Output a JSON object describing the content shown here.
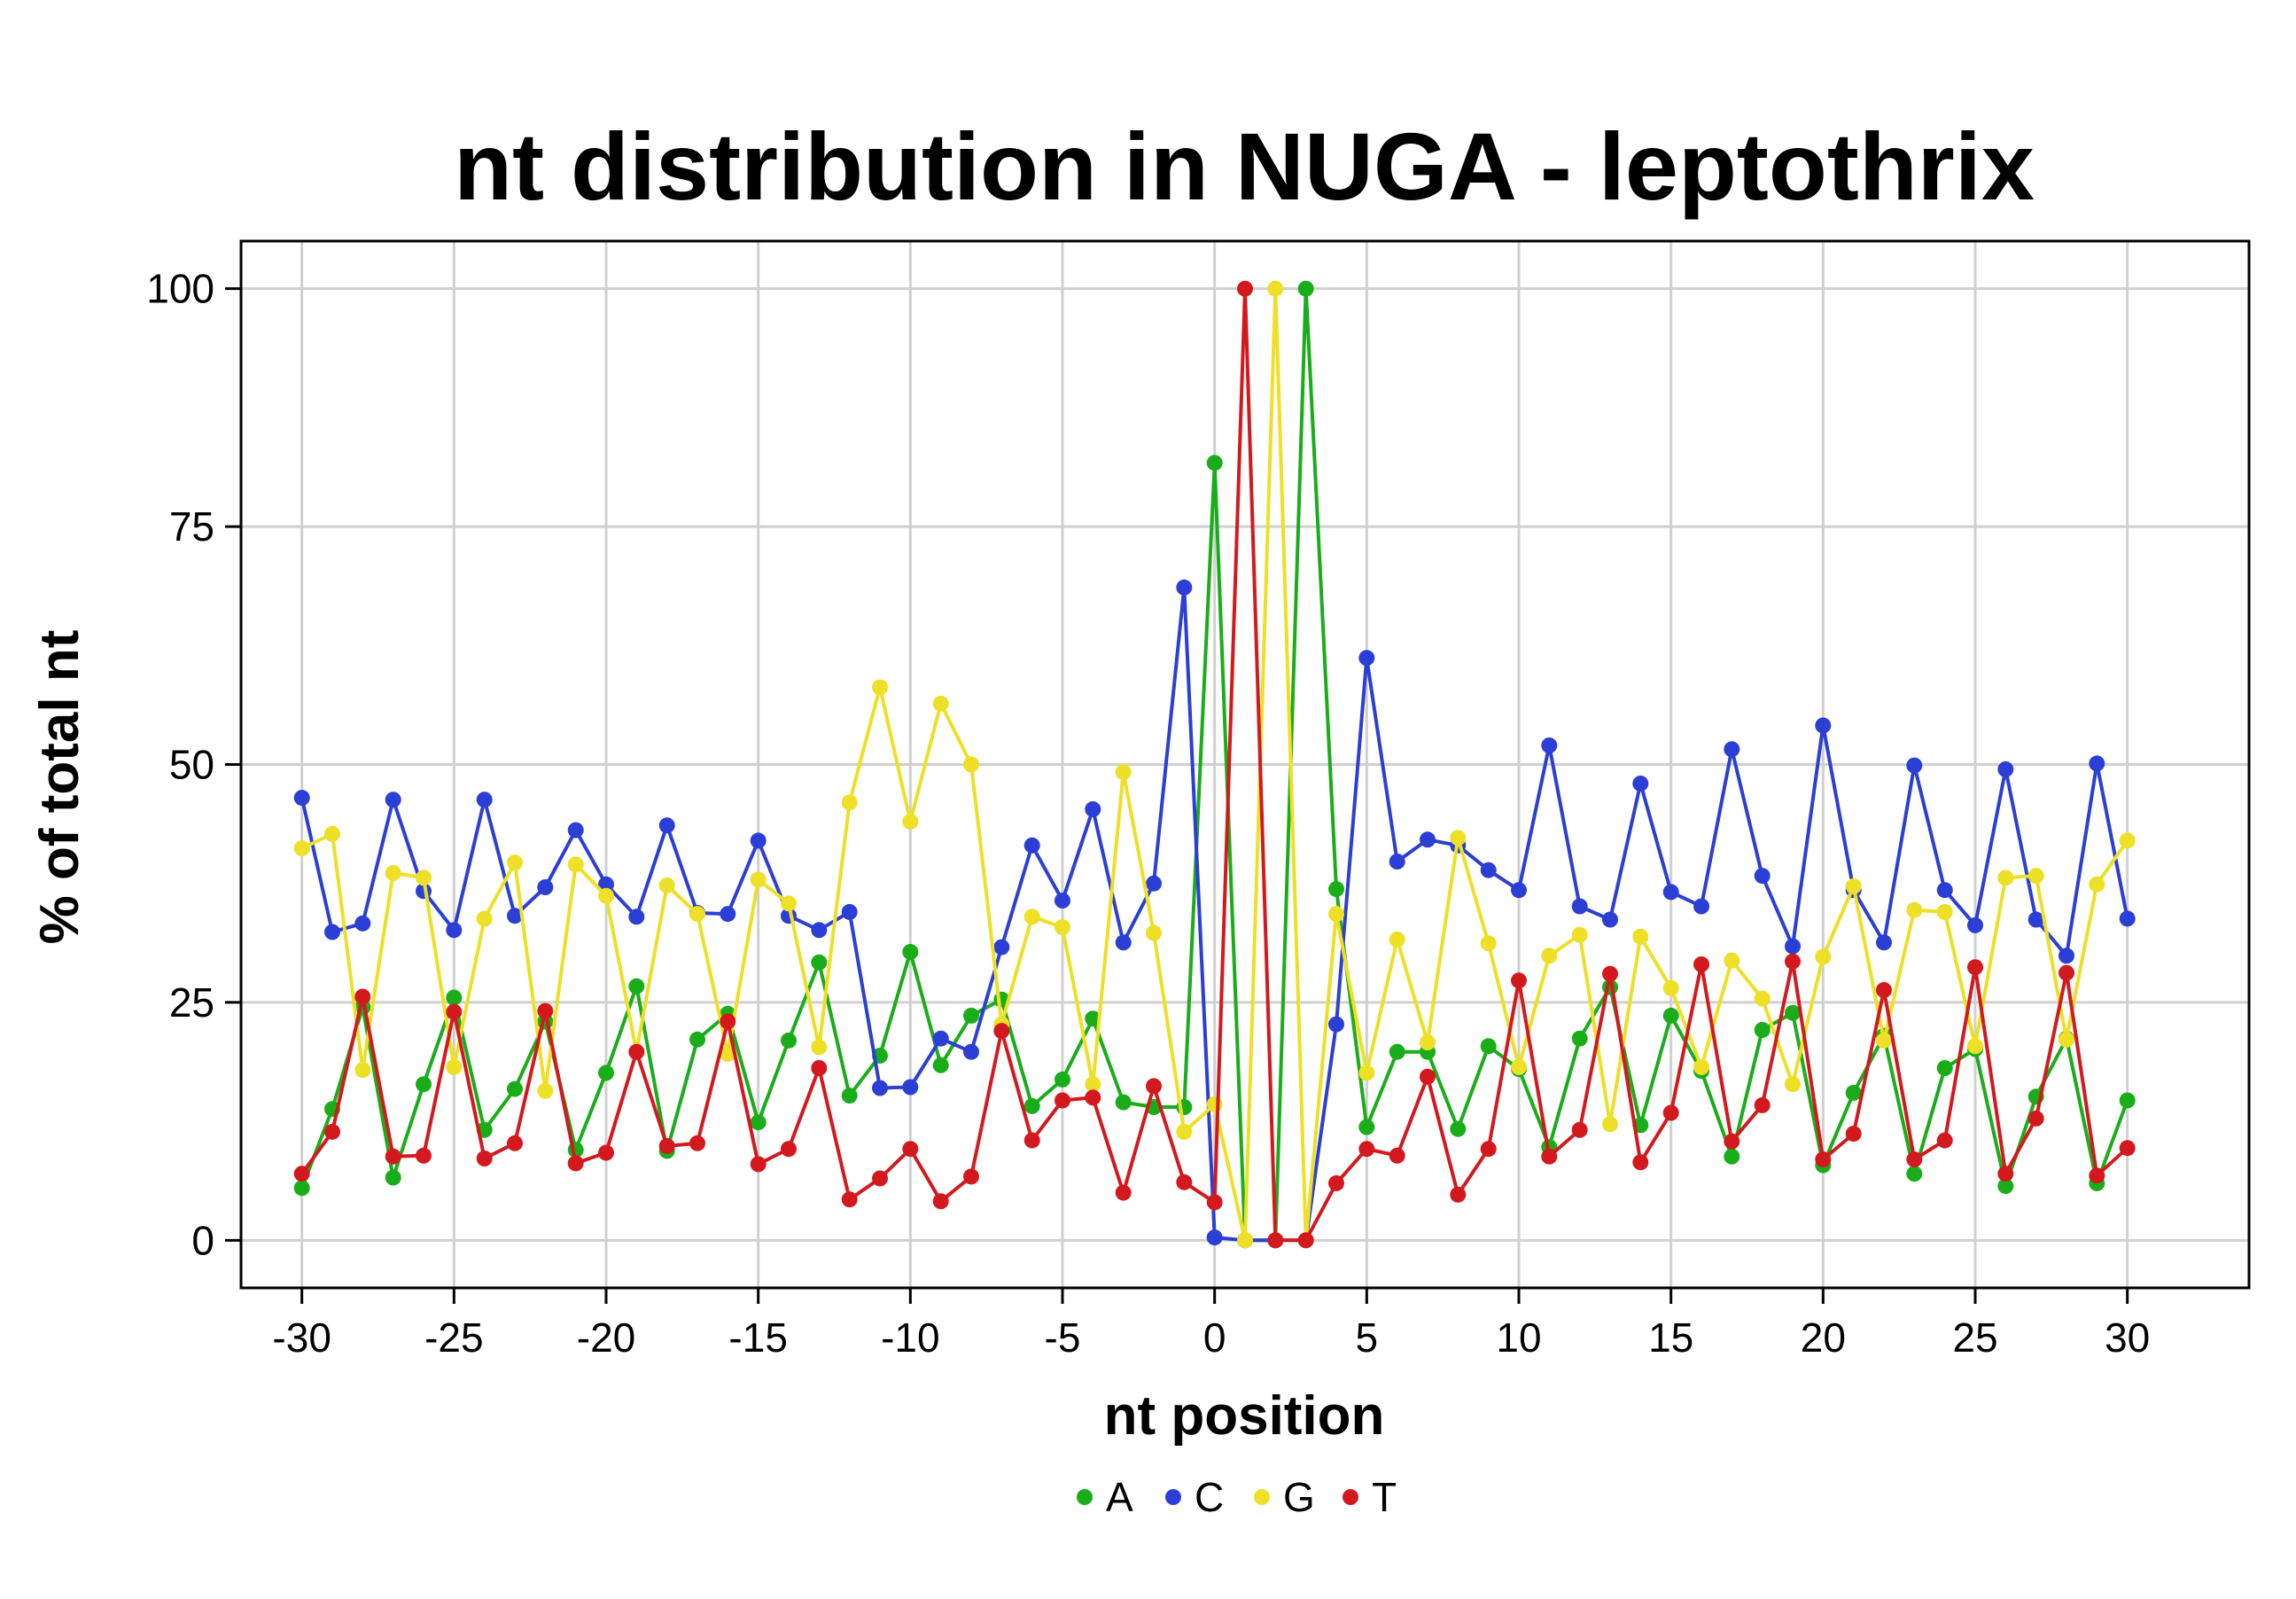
{
  "chart_data": {
    "type": "line",
    "title": "nt distribution in NUGA - leptothrix",
    "xlabel": "nt position",
    "ylabel": "% of total nt",
    "xlim": [
      -32,
      34
    ],
    "ylim": [
      -5,
      105
    ],
    "xticks": [
      -30,
      -25,
      -20,
      -15,
      -10,
      -5,
      0,
      5,
      10,
      15,
      20,
      25,
      30
    ],
    "yticks": [
      0,
      25,
      50,
      75,
      100
    ],
    "grid": true,
    "legend_position": "bottom",
    "x": [
      -30,
      -29,
      -28,
      -27,
      -26,
      -25,
      -24,
      -23,
      -22,
      -21,
      -20,
      -19,
      -18,
      -17,
      -16,
      -15,
      -14,
      -13,
      -12,
      -11,
      -10,
      -9,
      -8,
      -7,
      -6,
      -5,
      -4,
      -3,
      -2,
      -1,
      0,
      1,
      2,
      3,
      4,
      5,
      6,
      7,
      8,
      9,
      10,
      11,
      12,
      13,
      14,
      15,
      16,
      17,
      18,
      19,
      20,
      21,
      22,
      23,
      24,
      25,
      26,
      27,
      28,
      29,
      30
    ],
    "series": [
      {
        "name": "A",
        "color": "#1aad1a",
        "values": [
          5.5,
          13.8,
          24.5,
          6.6,
          16.4,
          25.5,
          11.6,
          15.9,
          23.0,
          9.5,
          17.6,
          26.7,
          9.4,
          21.1,
          23.8,
          12.4,
          21.0,
          29.2,
          15.2,
          19.4,
          30.3,
          18.4,
          23.6,
          25.3,
          14.1,
          16.9,
          23.3,
          14.5,
          14.0,
          14.0,
          81.7,
          0,
          0,
          100,
          36.9,
          11.9,
          19.8,
          19.8,
          11.7,
          20.4,
          18.0,
          9.8,
          21.2,
          26.6,
          12.1,
          23.6,
          17.8,
          8.8,
          22.1,
          23.9,
          7.9,
          15.5,
          21.5,
          7.0,
          18.1,
          20.1,
          5.7,
          15.1,
          21.2,
          6.0,
          14.7
        ]
      },
      {
        "name": "C",
        "color": "#2b3fd6",
        "values": [
          46.5,
          32.4,
          33.3,
          46.3,
          36.7,
          32.6,
          46.3,
          34.1,
          37.1,
          43.1,
          37.4,
          34.0,
          43.6,
          34.4,
          34.3,
          42.0,
          34.1,
          32.6,
          34.5,
          16.0,
          16.1,
          21.2,
          19.8,
          30.8,
          41.5,
          35.7,
          45.3,
          31.3,
          37.5,
          68.6,
          0.3,
          0,
          0,
          0,
          22.7,
          61.2,
          39.8,
          42.1,
          41.5,
          38.9,
          36.8,
          52.0,
          35.1,
          33.7,
          48.0,
          36.6,
          35.1,
          51.6,
          38.3,
          30.9,
          54.1,
          36.8,
          31.3,
          49.9,
          36.8,
          33.1,
          49.5,
          33.7,
          29.9,
          50.1,
          33.8
        ]
      },
      {
        "name": "G",
        "color": "#ede026",
        "values": [
          41.2,
          42.7,
          17.9,
          38.6,
          38.1,
          18.2,
          33.8,
          39.7,
          15.7,
          39.5,
          36.2,
          19.8,
          37.3,
          34.3,
          19.6,
          37.9,
          35.4,
          20.3,
          46.0,
          58.1,
          44.0,
          56.4,
          50.0,
          22.7,
          34.0,
          32.9,
          16.4,
          49.2,
          32.3,
          11.4,
          14.3,
          0,
          100,
          0,
          34.3,
          17.6,
          31.6,
          20.8,
          42.3,
          31.2,
          18.2,
          29.9,
          32.1,
          12.2,
          31.9,
          26.5,
          18.2,
          29.4,
          25.4,
          16.4,
          29.8,
          37.2,
          21.0,
          34.7,
          34.5,
          20.4,
          38.1,
          38.3,
          21.1,
          37.4,
          42.0
        ]
      },
      {
        "name": "T",
        "color": "#d4191e",
        "values": [
          7.0,
          11.4,
          25.6,
          8.8,
          8.9,
          24.0,
          8.6,
          10.2,
          24.1,
          8.1,
          9.2,
          19.8,
          9.9,
          10.2,
          23.0,
          8.0,
          9.6,
          18.1,
          4.3,
          6.5,
          9.6,
          4.1,
          6.7,
          22.0,
          10.5,
          14.7,
          15.0,
          5.0,
          16.2,
          6.1,
          4.0,
          100,
          0,
          0,
          6.0,
          9.6,
          8.9,
          17.2,
          4.8,
          9.6,
          27.3,
          8.8,
          11.6,
          28.0,
          8.2,
          13.4,
          29.0,
          10.4,
          14.2,
          29.3,
          8.5,
          11.2,
          26.3,
          8.5,
          10.5,
          28.7,
          7.0,
          12.8,
          28.1,
          6.8,
          9.7
        ]
      }
    ]
  }
}
